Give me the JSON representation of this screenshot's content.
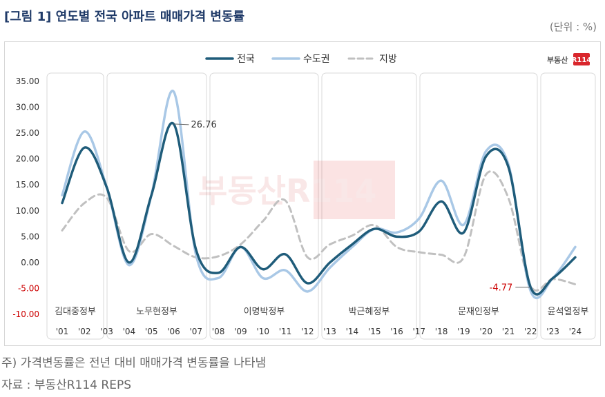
{
  "figure": {
    "title": "[그림 1] 연도별 전국 아파트 매매가격 변동률",
    "unit": "(단위 : %)",
    "note": "주) 가격변동률은 전년 대비 매매가격 변동률을 나타냄",
    "source": "자료 : 부동산R114 REPS",
    "logo": "부동산R114",
    "watermark": "부동산R114"
  },
  "colors": {
    "national": "#1f5c7a",
    "capital": "#a9c8e6",
    "regional": "#c0c0c0",
    "callout_negative": "#cc0000"
  },
  "chart_data": {
    "type": "line",
    "title": "",
    "xlabel": "",
    "ylabel": "",
    "ylim": [
      -10,
      35
    ],
    "yticks": [
      "35.00",
      "30.00",
      "25.00",
      "20.00",
      "15.00",
      "10.00",
      "5.00",
      "0.00",
      "-5.00",
      "-10.00"
    ],
    "x": [
      "'01",
      "'02",
      "'03",
      "'04",
      "'05",
      "'06",
      "'07",
      "'08",
      "'09",
      "'10",
      "'11",
      "'12",
      "'13",
      "'14",
      "'15",
      "'16",
      "'17",
      "'18",
      "'19",
      "'20",
      "'21",
      "'22",
      "'23",
      "'24"
    ],
    "grid": false,
    "legend": "top-center",
    "series": [
      {
        "name": "전국",
        "style": "solid",
        "values": [
          11.5,
          22.2,
          14.5,
          0.0,
          13.0,
          26.76,
          2.5,
          -2.0,
          3.0,
          -1.3,
          1.6,
          -4.0,
          0.0,
          3.5,
          6.5,
          5.0,
          6.0,
          11.8,
          5.8,
          20.5,
          18.5,
          -4.77,
          -3.0,
          1.0
        ]
      },
      {
        "name": "수도권",
        "style": "solid",
        "values": [
          13.0,
          25.3,
          14.5,
          -0.5,
          13.0,
          33.0,
          1.5,
          -3.0,
          3.0,
          -3.0,
          -1.5,
          -5.6,
          -1.0,
          3.0,
          6.5,
          5.8,
          8.5,
          15.8,
          7.3,
          21.5,
          19.0,
          -5.5,
          -3.0,
          3.0
        ]
      },
      {
        "name": "지방",
        "style": "dashed",
        "values": [
          6.2,
          11.5,
          12.5,
          2.2,
          5.5,
          3.2,
          1.0,
          1.2,
          3.5,
          8.0,
          12.0,
          1.0,
          3.5,
          5.2,
          7.2,
          3.0,
          2.0,
          1.5,
          1.0,
          17.0,
          12.5,
          -4.5,
          -3.2,
          -4.2
        ]
      }
    ],
    "annotations": [
      {
        "x": "'06",
        "value": 26.76,
        "label": "26.76"
      },
      {
        "x": "'22",
        "value": -4.77,
        "label": "-4.77"
      }
    ],
    "periods": [
      {
        "label": "김대중정부",
        "from": "'01",
        "to": "'02"
      },
      {
        "label": "노무현정부",
        "from": "'03",
        "to": "'07"
      },
      {
        "label": "이명박정부",
        "from": "'08",
        "to": "'12"
      },
      {
        "label": "박근혜정부",
        "from": "'13",
        "to": "'16"
      },
      {
        "label": "문재인정부",
        "from": "'17",
        "to": "'21"
      },
      {
        "label": "윤석열정부",
        "from": "'23",
        "to": "'24"
      }
    ]
  }
}
